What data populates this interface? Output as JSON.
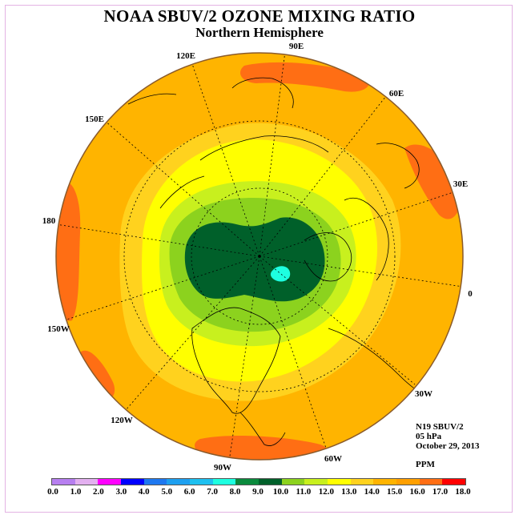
{
  "title": "NOAA SBUV/2 OZONE MIXING RATIO",
  "subtitle": "Northern Hemisphere",
  "longitude_labels": [
    "90E",
    "60E",
    "30E",
    "0",
    "30W",
    "60W",
    "90W",
    "120W",
    "150W",
    "180",
    "150E",
    "120E"
  ],
  "info": {
    "instrument": "N19 SBUV/2",
    "level": "05 hPa",
    "date": "October 29, 2013",
    "units": "PPM"
  },
  "colorbar": {
    "tick_labels": [
      "0.0",
      "1.0",
      "2.0",
      "3.0",
      "4.0",
      "5.0",
      "6.0",
      "7.0",
      "8.0",
      "9.0",
      "10.0",
      "11.0",
      "12.0",
      "13.0",
      "14.0",
      "15.0",
      "16.0",
      "17.0",
      "18.0"
    ],
    "colors": [
      "#b77ff0",
      "#e3b0f0",
      "#ff00ff",
      "#0000ff",
      "#1e78f0",
      "#1ea0f0",
      "#1ec0f0",
      "#1effe0",
      "#0a8a3c",
      "#00602a",
      "#8cd21e",
      "#c8f01e",
      "#ffff00",
      "#ffd21e",
      "#ffb400",
      "#ffa000",
      "#ff6e14",
      "#ff0000",
      "#8c5a3c"
    ]
  },
  "fields": {
    "ocean_color": "#ffa000",
    "coast_color": "#000000"
  }
}
